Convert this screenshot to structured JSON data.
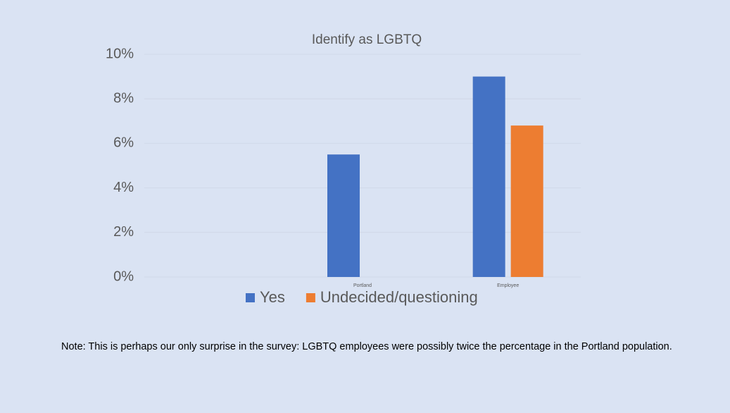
{
  "chart_data": {
    "type": "bar",
    "title": "Identify as LGBTQ",
    "categories": [
      null,
      "Portland",
      "Employee"
    ],
    "series": [
      {
        "name": "Yes",
        "color": "#4472c4",
        "values": [
          null,
          5.5,
          9.0
        ]
      },
      {
        "name": "Undecided/questioning",
        "color": "#ed7d31",
        "values": [
          null,
          null,
          6.8
        ]
      }
    ],
    "ylim": [
      0,
      10
    ],
    "yticks": [
      {
        "value": 0,
        "label": "0%"
      },
      {
        "value": 2,
        "label": "2%"
      },
      {
        "value": 4,
        "label": "4%"
      },
      {
        "value": 6,
        "label": "6%"
      },
      {
        "value": 8,
        "label": "8%"
      },
      {
        "value": 10,
        "label": "10%"
      }
    ],
    "grid": true,
    "legend": "bottom"
  },
  "note": "Note: This is perhaps our only surprise in the survey: LGBTQ employees were possibly twice the percentage in the Portland population."
}
